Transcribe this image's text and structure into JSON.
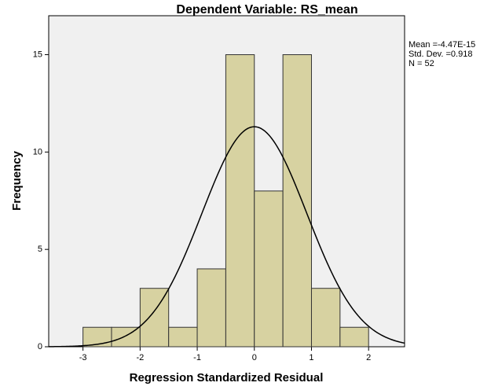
{
  "chart_data": {
    "type": "histogram",
    "title": "Dependent Variable: RS_mean",
    "x_label": "Regression Standardized Residual",
    "y_label": "Frequency",
    "bins": [
      -3,
      -2.5,
      -2,
      -1.5,
      -1,
      -0.5,
      0,
      0.5,
      1,
      1.5,
      2
    ],
    "values": [
      1,
      1,
      3,
      1,
      4,
      15,
      8,
      15,
      3,
      1
    ],
    "color": "#d7d2a1",
    "curve_color": "#000000",
    "xlim": [
      -3.6,
      2.63
    ],
    "ylim": [
      0,
      17
    ],
    "xticks": [
      -3,
      -2,
      -1,
      0,
      1,
      2
    ],
    "yticks": [
      0,
      5,
      10,
      15
    ],
    "stats": [
      {
        "value": -4.47e-15,
        "label": "Mean =-4.47E-15"
      },
      {
        "value": 0.918,
        "label": "Std. Dev. =0.918"
      },
      {
        "value": 52,
        "label": "N = 52"
      }
    ]
  }
}
